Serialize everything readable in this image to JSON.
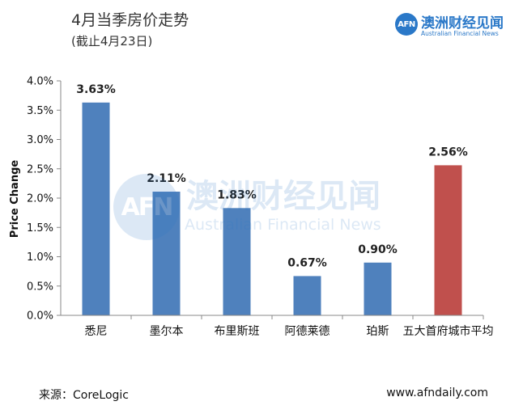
{
  "title": "4月当季房价走势",
  "subtitle": "(截止4月23日)",
  "logo": {
    "cn": "澳洲财经见闻",
    "en": "Australian Financial News",
    "badge": "AFN"
  },
  "watermark": {
    "cn": "澳洲财经见闻",
    "en": "Australian Financial News",
    "badge": "AFN"
  },
  "footer": {
    "source": "来源：CoreLogic",
    "url": "www.afndaily.com"
  },
  "colors": {
    "bar": "#4f81bd",
    "highlight": "#c0504d",
    "brand": "#2a78c8"
  },
  "chart_data": {
    "type": "bar",
    "categories": [
      "悉尼",
      "墨尔本",
      "布里斯班",
      "阿德莱德",
      "珀斯",
      "五大首府城市平均"
    ],
    "values": [
      3.63,
      2.11,
      1.83,
      0.67,
      0.9,
      2.56
    ],
    "value_labels": [
      "3.63%",
      "2.11%",
      "1.83%",
      "0.67%",
      "0.90%",
      "2.56%"
    ],
    "highlight_index": 5,
    "ylabel": "Price Change",
    "ylim": [
      0,
      4.0
    ],
    "yticks": [
      "0.0%",
      "0.5%",
      "1.0%",
      "1.5%",
      "2.0%",
      "2.5%",
      "3.0%",
      "3.5%",
      "4.0%"
    ],
    "grid": false,
    "legend": "none"
  }
}
